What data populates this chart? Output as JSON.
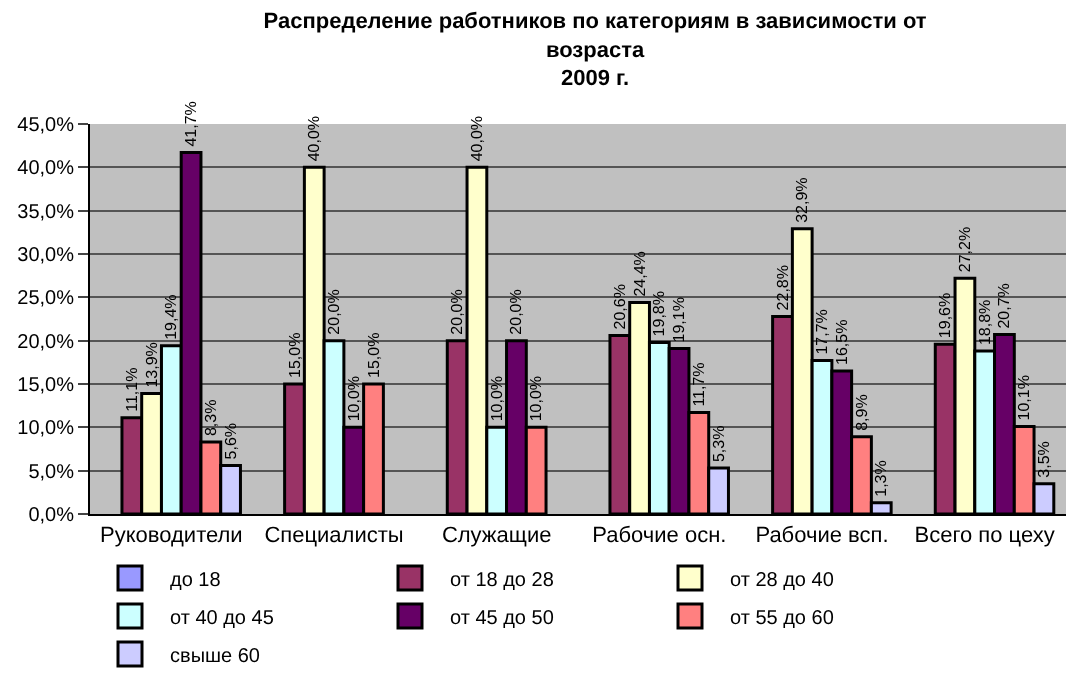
{
  "chart_data": {
    "type": "bar",
    "title": "Распределение работников по категориям в зависимости от возраста",
    "subtitle": "2009 г.",
    "categories": [
      "Руководители",
      "Специалисты",
      "Служащие",
      "Рабочие осн.",
      "Рабочие всп.",
      "Всего по цеху"
    ],
    "series": [
      {
        "name": "до 18",
        "color": "#9999ff",
        "values": [
          null,
          null,
          null,
          null,
          null,
          null
        ]
      },
      {
        "name": "от 18 до 28",
        "color": "#993366",
        "values": [
          11.1,
          15.0,
          20.0,
          20.6,
          22.8,
          19.6
        ],
        "value_labels": [
          "11,1%",
          "15,0%",
          "20,0%",
          "20,6%",
          "22,8%",
          "19,6%"
        ]
      },
      {
        "name": "от 28 до 40",
        "color": "#ffffcc",
        "values": [
          13.9,
          40.0,
          40.0,
          24.4,
          32.9,
          27.2
        ],
        "value_labels": [
          "13,9%",
          "40,0%",
          "40,0%",
          "24,4%",
          "32,9%",
          "27,2%"
        ]
      },
      {
        "name": "от 40 до 45",
        "color": "#ccffff",
        "values": [
          19.4,
          20.0,
          10.0,
          19.8,
          17.7,
          18.8
        ],
        "value_labels": [
          "19,4%",
          "20,0%",
          "10,0%",
          "19,8%",
          "17,7%",
          "18,8%"
        ]
      },
      {
        "name": "от 45 до 50",
        "color": "#660066",
        "values": [
          41.7,
          10.0,
          20.0,
          19.1,
          16.5,
          20.7
        ],
        "value_labels": [
          "41,7%",
          "10,0%",
          "20,0%",
          "19,1%",
          "16,5%",
          "20,7%"
        ]
      },
      {
        "name": "от 55 до 60",
        "color": "#ff8080",
        "values": [
          8.3,
          15.0,
          10.0,
          11.7,
          8.9,
          10.1
        ],
        "value_labels": [
          "8,3%",
          "15,0%",
          "10,0%",
          "11,7%",
          "8,9%",
          "10,1%"
        ]
      },
      {
        "name": "свыше 60",
        "color": "#ccccff",
        "values": [
          5.6,
          null,
          null,
          5.3,
          1.3,
          3.5
        ],
        "value_labels": [
          "5,6%",
          null,
          null,
          "5,3%",
          "1,3%",
          "3,5%"
        ]
      }
    ],
    "ylim": [
      0,
      45
    ],
    "yticks": [
      {
        "value": 0,
        "label": "0,0%"
      },
      {
        "value": 5,
        "label": "5,0%"
      },
      {
        "value": 10,
        "label": "10,0%"
      },
      {
        "value": 15,
        "label": "15,0%"
      },
      {
        "value": 20,
        "label": "20,0%"
      },
      {
        "value": 25,
        "label": "25,0%"
      },
      {
        "value": 30,
        "label": "30,0%"
      },
      {
        "value": 35,
        "label": "35,0%"
      },
      {
        "value": 40,
        "label": "40,0%"
      },
      {
        "value": 45,
        "label": "45,0%"
      }
    ],
    "grid": "y",
    "legend": "bottom"
  }
}
